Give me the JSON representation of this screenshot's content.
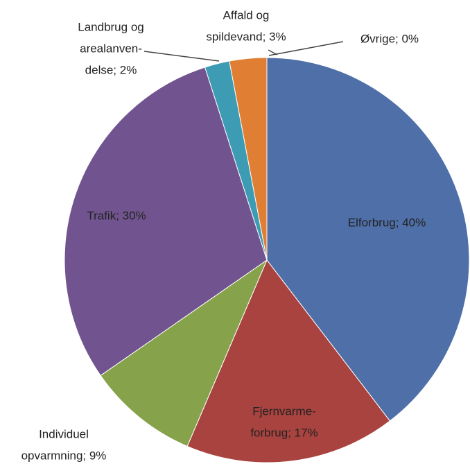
{
  "chart_data": {
    "type": "pie",
    "values": [
      40,
      17,
      9,
      30,
      2,
      3,
      0
    ],
    "value_labels": [
      [
        "Elforbrug; 40%"
      ],
      [
        "Fjernvarme-",
        "forbrug; 17%"
      ],
      [
        "Individuel",
        "opvarmning; 9%"
      ],
      [
        "Trafik; 30%"
      ],
      [
        "Landbrug og",
        "arealanven-",
        "delse; 2%"
      ],
      [
        "Affald og",
        "spildevand; 3%"
      ],
      [
        "Øvrige; 0%"
      ]
    ],
    "colors": [
      "#4f6fa8",
      "#a9433f",
      "#86a24a",
      "#71548f",
      "#3d9bb4",
      "#e07f34",
      "#8aa4cf"
    ]
  }
}
